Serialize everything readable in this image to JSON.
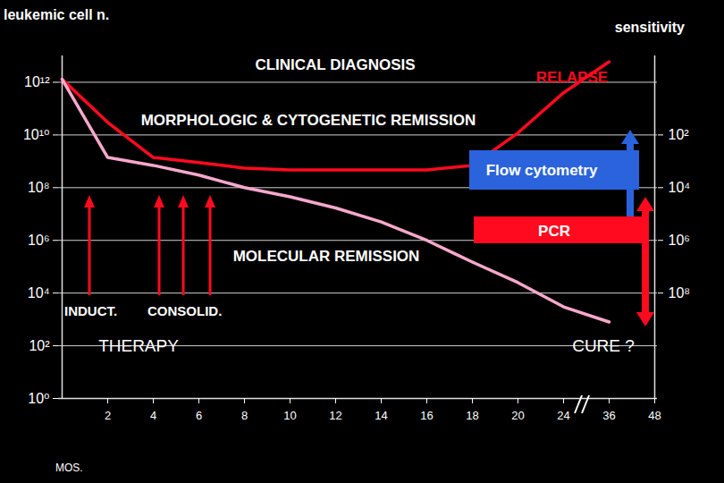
{
  "chart_data": {
    "type": "line",
    "y_label": "leukemic cell n.",
    "y2_label": "sensitivity",
    "x_label": "MOS.",
    "categories": [
      null,
      "2",
      "4",
      "6",
      "8",
      "10",
      "12",
      "14",
      "16",
      "18",
      "20",
      "24",
      "36",
      "48"
    ],
    "series": [
      {
        "color": "#ff0a1e",
        "values": [
          1300000000000.0,
          30000000000.0,
          1400000000.0,
          900000000.0,
          550000000.0,
          470000000.0,
          470000000.0,
          470000000.0,
          470000000.0,
          700000000.0,
          12000000000.0,
          400000000000.0,
          6000000000000.0,
          null
        ]
      },
      {
        "color": "#f7a8cc",
        "values": [
          1300000000000.0,
          1400000000.0,
          700000000.0,
          300000000.0,
          100000000.0,
          45000000.0,
          17000000.0,
          5000000.0,
          1000000.0,
          150000.0,
          25000.0,
          3000.0,
          800.0,
          null
        ]
      }
    ],
    "log": "y",
    "ylim": [
      1,
      10000000000000.0
    ],
    "yticks": [
      {
        "value": 1,
        "label": "10⁰"
      },
      {
        "value": 100,
        "label": "10²"
      },
      {
        "value": 10000,
        "label": "10⁴"
      },
      {
        "value": 1000000,
        "label": "10⁶"
      },
      {
        "value": 100000000,
        "label": "10⁸"
      },
      {
        "value": 10000000000,
        "label": "10¹⁰"
      },
      {
        "value": 1000000000000,
        "label": "10¹²"
      }
    ],
    "y2lim": [
      1000000000000.0,
      0.1
    ],
    "y2ticks": [
      {
        "value": 100,
        "label": "10²"
      },
      {
        "value": 10000,
        "label": "10⁴"
      },
      {
        "value": 1000000,
        "label": "10⁶"
      },
      {
        "value": 100000000,
        "label": "10⁸"
      }
    ],
    "grid": true,
    "annotations": [
      "CLINICAL DIAGNOSIS",
      "RELAPSE",
      "MORPHOLOGIC & CYTOGENETIC REMISSION",
      "Flow cytometry",
      "PCR",
      "MOLECULAR REMISSION",
      "INDUCT.",
      "CONSOLID.",
      "THERAPY",
      "CURE ?"
    ]
  }
}
